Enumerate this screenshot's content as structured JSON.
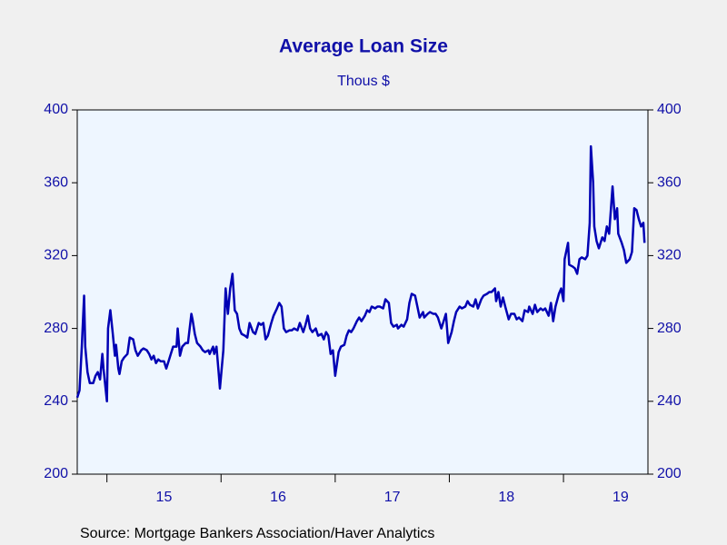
{
  "chart_data": {
    "type": "line",
    "title": "Average Loan Size",
    "subtitle": "Thous $",
    "source": "Source:  Mortgage Bankers Association/Haver Analytics",
    "xlim": [
      2014.74,
      2019.74
    ],
    "xticks": [
      2015,
      2016,
      2017,
      2018,
      2019
    ],
    "xlabels": [
      {
        "value": 2015.5,
        "label": "15"
      },
      {
        "value": 2016.5,
        "label": "16"
      },
      {
        "value": 2017.5,
        "label": "17"
      },
      {
        "value": 2018.5,
        "label": "18"
      },
      {
        "value": 2019.5,
        "label": "19"
      }
    ],
    "ylim": [
      200,
      400
    ],
    "yticks": [
      200,
      240,
      280,
      320,
      360,
      400
    ],
    "right_axis": true,
    "series": [
      {
        "name": "Average Loan Size",
        "color": "#0000b4",
        "x": [
          2014.74,
          2014.76,
          2014.78,
          2014.8,
          2014.81,
          2014.83,
          2014.85,
          2014.88,
          2014.9,
          2014.92,
          2014.94,
          2014.96,
          2014.97,
          2015.0,
          2015.01,
          2015.03,
          2015.05,
          2015.07,
          2015.08,
          2015.1,
          2015.11,
          2015.13,
          2015.15,
          2015.18,
          2015.2,
          2015.23,
          2015.25,
          2015.27,
          2015.3,
          2015.32,
          2015.35,
          2015.37,
          2015.39,
          2015.41,
          2015.43,
          2015.45,
          2015.47,
          2015.5,
          2015.52,
          2015.54,
          2015.56,
          2015.58,
          2015.61,
          2015.62,
          2015.64,
          2015.66,
          2015.69,
          2015.71,
          2015.74,
          2015.75,
          2015.77,
          2015.79,
          2015.82,
          2015.84,
          2015.86,
          2015.89,
          2015.9,
          2015.93,
          2015.94,
          2015.96,
          2015.98,
          2015.99,
          2016.02,
          2016.04,
          2016.06,
          2016.08,
          2016.1,
          2016.12,
          2016.14,
          2016.16,
          2016.18,
          2016.21,
          2016.23,
          2016.25,
          2016.28,
          2016.3,
          2016.33,
          2016.35,
          2016.37,
          2016.39,
          2016.41,
          2016.44,
          2016.46,
          2016.49,
          2016.51,
          2016.53,
          2016.55,
          2016.57,
          2016.6,
          2016.62,
          2016.64,
          2016.67,
          2016.69,
          2016.72,
          2016.74,
          2016.76,
          2016.78,
          2016.8,
          2016.83,
          2016.85,
          2016.88,
          2016.9,
          2016.92,
          2016.94,
          2016.96,
          2016.98,
          2017.0,
          2017.03,
          2017.05,
          2017.08,
          2017.1,
          2017.12,
          2017.14,
          2017.16,
          2017.19,
          2017.21,
          2017.23,
          2017.26,
          2017.28,
          2017.3,
          2017.32,
          2017.35,
          2017.37,
          2017.39,
          2017.42,
          2017.44,
          2017.47,
          2017.49,
          2017.51,
          2017.54,
          2017.55,
          2017.58,
          2017.6,
          2017.63,
          2017.65,
          2017.67,
          2017.7,
          2017.72,
          2017.74,
          2017.77,
          2017.78,
          2017.81,
          2017.83,
          2017.86,
          2017.88,
          2017.9,
          2017.93,
          2017.94,
          2017.97,
          2017.99,
          2018.02,
          2018.04,
          2018.06,
          2018.09,
          2018.11,
          2018.14,
          2018.16,
          2018.18,
          2018.21,
          2018.23,
          2018.25,
          2018.28,
          2018.3,
          2018.33,
          2018.35,
          2018.37,
          2018.4,
          2018.41,
          2018.43,
          2018.45,
          2018.47,
          2018.49,
          2018.52,
          2018.54,
          2018.57,
          2018.59,
          2018.61,
          2018.64,
          2018.66,
          2018.69,
          2018.7,
          2018.73,
          2018.75,
          2018.77,
          2018.8,
          2018.82,
          2018.84,
          2018.87,
          2018.89,
          2018.91,
          2018.93,
          2018.96,
          2018.98,
          2019.0,
          2019.01,
          2019.04,
          2019.05,
          2019.08,
          2019.1,
          2019.12,
          2019.14,
          2019.16,
          2019.19,
          2019.21,
          2019.23,
          2019.24,
          2019.26,
          2019.27,
          2019.29,
          2019.31,
          2019.34,
          2019.36,
          2019.38,
          2019.4,
          2019.43,
          2019.45,
          2019.47,
          2019.48,
          2019.51,
          2019.53,
          2019.55,
          2019.58,
          2019.6,
          2019.62,
          2019.64,
          2019.66,
          2019.68,
          2019.7,
          2019.71
        ],
        "values": [
          242,
          246,
          270,
          298,
          270,
          256,
          250,
          250,
          254,
          256,
          252,
          266,
          258,
          240,
          280,
          290,
          278,
          265,
          271,
          258,
          255,
          262,
          264,
          266,
          275,
          274,
          268,
          265,
          268,
          269,
          268,
          266,
          263,
          265,
          261,
          263,
          262,
          262,
          258,
          262,
          266,
          270,
          270,
          280,
          265,
          270,
          272,
          272,
          288,
          285,
          277,
          272,
          270,
          268,
          267,
          268,
          266,
          270,
          266,
          270,
          255,
          247,
          268,
          302,
          288,
          302,
          310,
          290,
          288,
          280,
          277,
          276,
          275,
          283,
          278,
          277,
          283,
          282,
          283,
          274,
          276,
          283,
          287,
          291,
          294,
          292,
          280,
          278,
          279,
          279,
          280,
          279,
          283,
          278,
          282,
          287,
          280,
          278,
          280,
          276,
          277,
          274,
          278,
          276,
          266,
          268,
          254,
          267,
          270,
          271,
          276,
          279,
          278,
          280,
          284,
          286,
          284,
          287,
          290,
          289,
          292,
          291,
          292,
          292,
          291,
          296,
          294,
          283,
          281,
          282,
          280,
          282,
          281,
          285,
          294,
          299,
          298,
          292,
          286,
          289,
          286,
          288,
          289,
          288,
          288,
          286,
          280,
          282,
          288,
          272,
          278,
          284,
          289,
          292,
          291,
          292,
          295,
          293,
          292,
          296,
          291,
          296,
          298,
          299,
          300,
          300,
          302,
          295,
          300,
          292,
          297,
          292,
          285,
          288,
          288,
          285,
          286,
          284,
          290,
          289,
          292,
          288,
          293,
          289,
          291,
          290,
          291,
          287,
          294,
          284,
          292,
          299,
          302,
          295,
          318,
          327,
          315,
          314,
          313,
          310,
          318,
          319,
          318,
          320,
          338,
          380,
          360,
          336,
          328,
          324,
          330,
          328,
          336,
          332,
          358,
          340,
          346,
          332,
          327,
          323,
          316,
          318,
          322,
          346,
          345,
          340,
          336,
          338,
          327
        ]
      }
    ]
  }
}
